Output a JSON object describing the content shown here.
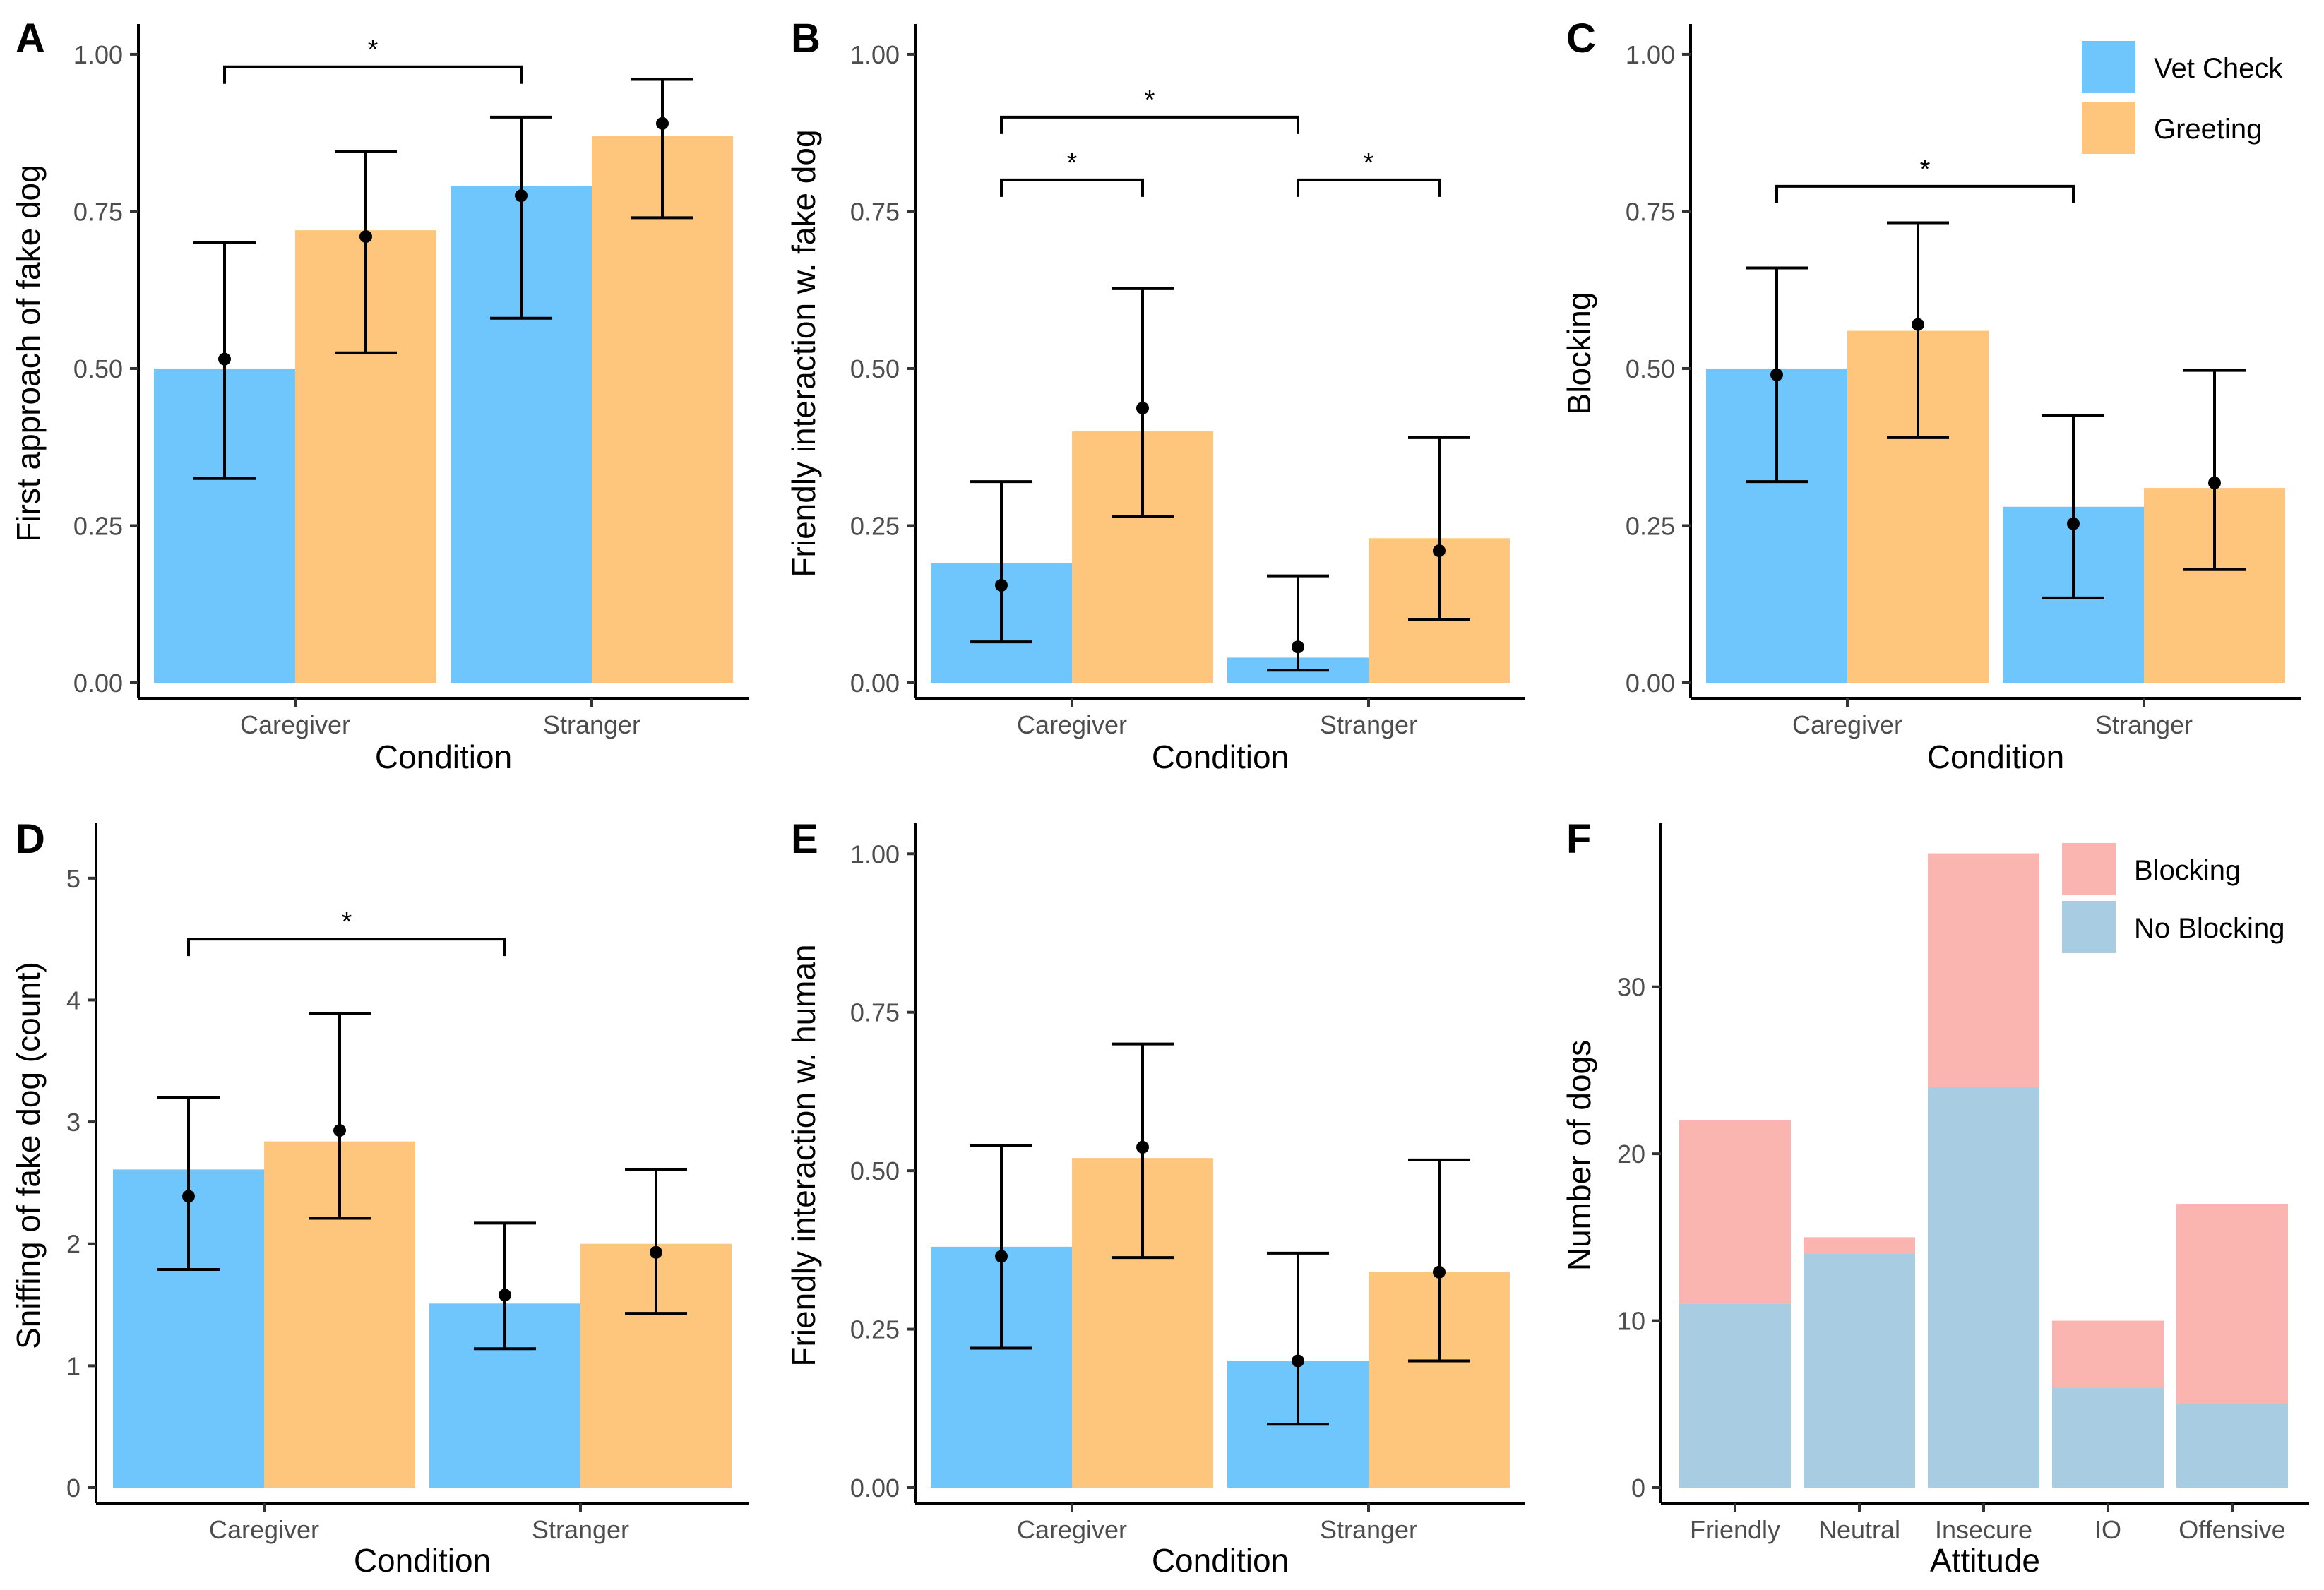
{
  "colors": {
    "vet_check": "#6EC6FC",
    "greeting": "#FEC67C",
    "blocking": "#FBB5B0",
    "no_blocking": "#A8CDE3"
  },
  "chart_data": [
    {
      "panel": "A",
      "type": "bar",
      "xlabel": "Condition",
      "ylabel": "First approach of fake dog",
      "categories": [
        "Caregiver",
        "Stranger"
      ],
      "ylim": [
        0,
        1.0
      ],
      "yticks": [
        "0.00",
        "0.25",
        "0.50",
        "0.75",
        "1.00"
      ],
      "tick_values": [
        0,
        0.25,
        0.5,
        0.75,
        1.0
      ],
      "series": [
        {
          "name": "Vet Check",
          "values": [
            0.5,
            0.79
          ],
          "means": [
            0.515,
            0.775
          ],
          "ci_low": [
            0.325,
            0.58
          ],
          "ci_high": [
            0.7,
            0.9
          ]
        },
        {
          "name": "Greeting",
          "values": [
            0.72,
            0.87
          ],
          "means": [
            0.71,
            0.89
          ],
          "ci_low": [
            0.525,
            0.74
          ],
          "ci_high": [
            0.845,
            0.96
          ]
        }
      ],
      "significance": [
        {
          "from": [
            0,
            0
          ],
          "to": [
            1,
            0
          ],
          "y": 0.98,
          "label": "*"
        }
      ]
    },
    {
      "panel": "B",
      "type": "bar",
      "xlabel": "Condition",
      "ylabel": "Friendly interaction w. fake dog",
      "categories": [
        "Caregiver",
        "Stranger"
      ],
      "ylim": [
        0,
        1.0
      ],
      "yticks": [
        "0.00",
        "0.25",
        "0.50",
        "0.75",
        "1.00"
      ],
      "tick_values": [
        0,
        0.25,
        0.5,
        0.75,
        1.0
      ],
      "series": [
        {
          "name": "Vet Check",
          "values": [
            0.19,
            0.04
          ],
          "means": [
            0.155,
            0.057
          ],
          "ci_low": [
            0.065,
            0.02
          ],
          "ci_high": [
            0.32,
            0.17
          ]
        },
        {
          "name": "Greeting",
          "values": [
            0.4,
            0.23
          ],
          "means": [
            0.437,
            0.21
          ],
          "ci_low": [
            0.265,
            0.1
          ],
          "ci_high": [
            0.627,
            0.39
          ]
        }
      ],
      "significance": [
        {
          "from": [
            0,
            0
          ],
          "to": [
            0,
            1
          ],
          "y": 0.8,
          "label": "*"
        },
        {
          "from": [
            1,
            0
          ],
          "to": [
            1,
            1
          ],
          "y": 0.8,
          "label": "*"
        },
        {
          "from": [
            0,
            0
          ],
          "to": [
            1,
            0
          ],
          "y": 0.9,
          "label": "*"
        }
      ]
    },
    {
      "panel": "C",
      "type": "bar",
      "xlabel": "Condition",
      "ylabel": "Blocking",
      "categories": [
        "Caregiver",
        "Stranger"
      ],
      "ylim": [
        0,
        1.0
      ],
      "yticks": [
        "0.00",
        "0.25",
        "0.50",
        "0.75",
        "1.00"
      ],
      "tick_values": [
        0,
        0.25,
        0.5,
        0.75,
        1.0
      ],
      "series": [
        {
          "name": "Vet Check",
          "values": [
            0.5,
            0.28
          ],
          "means": [
            0.49,
            0.253
          ],
          "ci_low": [
            0.32,
            0.135
          ],
          "ci_high": [
            0.66,
            0.425
          ]
        },
        {
          "name": "Greeting",
          "values": [
            0.56,
            0.31
          ],
          "means": [
            0.57,
            0.318
          ],
          "ci_low": [
            0.39,
            0.18
          ],
          "ci_high": [
            0.732,
            0.497
          ]
        }
      ],
      "significance": [
        {
          "from": [
            0,
            0
          ],
          "to": [
            1,
            0
          ],
          "y": 0.79,
          "label": "*"
        }
      ],
      "legend": {
        "position": "top-right",
        "entries": [
          "Vet Check",
          "Greeting"
        ]
      }
    },
    {
      "panel": "D",
      "type": "bar",
      "xlabel": "Condition",
      "ylabel": "Sniffing of fake dog (count)",
      "categories": [
        "Caregiver",
        "Stranger"
      ],
      "ylim": [
        0,
        5.2
      ],
      "yticks": [
        "0",
        "1",
        "2",
        "3",
        "4",
        "5"
      ],
      "tick_values": [
        0,
        1,
        2,
        3,
        4,
        5
      ],
      "series": [
        {
          "name": "Vet Check",
          "values": [
            2.61,
            1.51
          ],
          "means": [
            2.39,
            1.58
          ],
          "ci_low": [
            1.79,
            1.14
          ],
          "ci_high": [
            3.2,
            2.17
          ]
        },
        {
          "name": "Greeting",
          "values": [
            2.84,
            2.0
          ],
          "means": [
            2.93,
            1.93
          ],
          "ci_low": [
            2.21,
            1.43
          ],
          "ci_high": [
            3.89,
            2.61
          ]
        }
      ],
      "significance": [
        {
          "from": [
            0,
            0
          ],
          "to": [
            1,
            0
          ],
          "y": 4.5,
          "label": "*"
        }
      ]
    },
    {
      "panel": "E",
      "type": "bar",
      "xlabel": "Condition",
      "ylabel": "Friendly interaction w. human",
      "categories": [
        "Caregiver",
        "Stranger"
      ],
      "ylim": [
        0,
        1.0
      ],
      "yticks": [
        "0.00",
        "0.25",
        "0.50",
        "0.75",
        "1.00"
      ],
      "tick_values": [
        0,
        0.25,
        0.5,
        0.75,
        1.0
      ],
      "series": [
        {
          "name": "Vet Check",
          "values": [
            0.38,
            0.2
          ],
          "means": [
            0.365,
            0.2
          ],
          "ci_low": [
            0.22,
            0.1
          ],
          "ci_high": [
            0.54,
            0.37
          ]
        },
        {
          "name": "Greeting",
          "values": [
            0.52,
            0.34
          ],
          "means": [
            0.537,
            0.34
          ],
          "ci_low": [
            0.363,
            0.2
          ],
          "ci_high": [
            0.7,
            0.517
          ]
        }
      ],
      "significance": []
    },
    {
      "panel": "F",
      "type": "bar",
      "stacked": true,
      "xlabel": "Attitude",
      "ylabel": "Number of dogs",
      "categories": [
        "Friendly",
        "Neutral",
        "Insecure",
        "IO",
        "Offensive"
      ],
      "ylim": [
        0,
        39.8
      ],
      "yticks": [
        "0",
        "10",
        "20",
        "30"
      ],
      "tick_values": [
        0,
        10,
        20,
        30
      ],
      "series": [
        {
          "name": "No Blocking",
          "values": [
            11,
            14,
            24,
            6,
            5
          ]
        },
        {
          "name": "Blocking",
          "values": [
            11,
            1,
            14,
            4,
            12
          ]
        }
      ],
      "legend": {
        "position": "top-right",
        "entries": [
          "Blocking",
          "No Blocking"
        ]
      }
    }
  ]
}
